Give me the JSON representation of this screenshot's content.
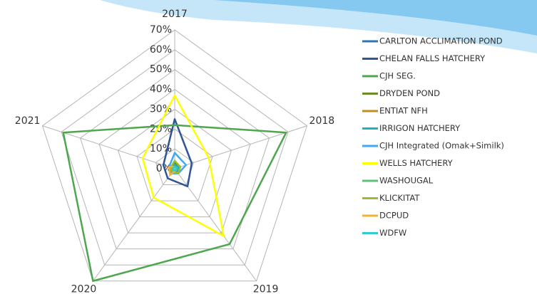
{
  "chart_data": {
    "type": "radar",
    "categories": [
      "2017",
      "2018",
      "2019",
      "2020",
      "2021"
    ],
    "rlim": [
      0,
      70
    ],
    "rticks": [
      {
        "value": 0,
        "label": "0%"
      },
      {
        "value": 10,
        "label": "10%"
      },
      {
        "value": 20,
        "label": "20%"
      },
      {
        "value": 30,
        "label": "30%"
      },
      {
        "value": 40,
        "label": "40%"
      },
      {
        "value": 50,
        "label": "50%"
      },
      {
        "value": 60,
        "label": "60%"
      },
      {
        "value": 70,
        "label": "70%"
      }
    ],
    "grid": true,
    "legend": "right",
    "series": [
      {
        "name": "CARLTON ACCLIMATION POND",
        "color": "#2e75b6",
        "values": [
          3,
          3,
          2,
          2,
          2
        ]
      },
      {
        "name": "CHELAN FALLS HATCHERY",
        "color": "#2f5597",
        "values": [
          25,
          9,
          11,
          6,
          6
        ]
      },
      {
        "name": "CJH SEG.",
        "color": "#4ea64e",
        "values": [
          22,
          59,
          47,
          70,
          59
        ]
      },
      {
        "name": "DRYDEN POND",
        "color": "#6b8e23",
        "values": [
          4,
          2,
          2,
          2,
          2
        ]
      },
      {
        "name": "ENTIAT NFH",
        "color": "#c28e22",
        "values": [
          2,
          2,
          2,
          3,
          3
        ]
      },
      {
        "name": "IRRIGON HATCHERY",
        "color": "#1fb5b5",
        "values": [
          2,
          2,
          2,
          2,
          2
        ]
      },
      {
        "name": "CJH Integrated (Omak+Similk)",
        "color": "#3fa9f5",
        "values": [
          8,
          6,
          3,
          3,
          3
        ]
      },
      {
        "name": "WELLS HATCHERY",
        "color": "#ffff00",
        "values": [
          37,
          18,
          42,
          18,
          17
        ]
      },
      {
        "name": "WASHOUGAL",
        "color": "#5cc17a",
        "values": [
          1,
          1,
          1,
          1,
          1
        ]
      },
      {
        "name": "KLICKITAT",
        "color": "#9dbb2e",
        "values": [
          4,
          3,
          3,
          2,
          2
        ]
      },
      {
        "name": "DCPUD",
        "color": "#f2b233",
        "values": [
          1,
          1,
          1,
          4,
          3
        ]
      },
      {
        "name": "WDFW",
        "color": "#33cccc",
        "values": [
          1,
          1,
          1,
          1,
          1
        ]
      }
    ]
  }
}
